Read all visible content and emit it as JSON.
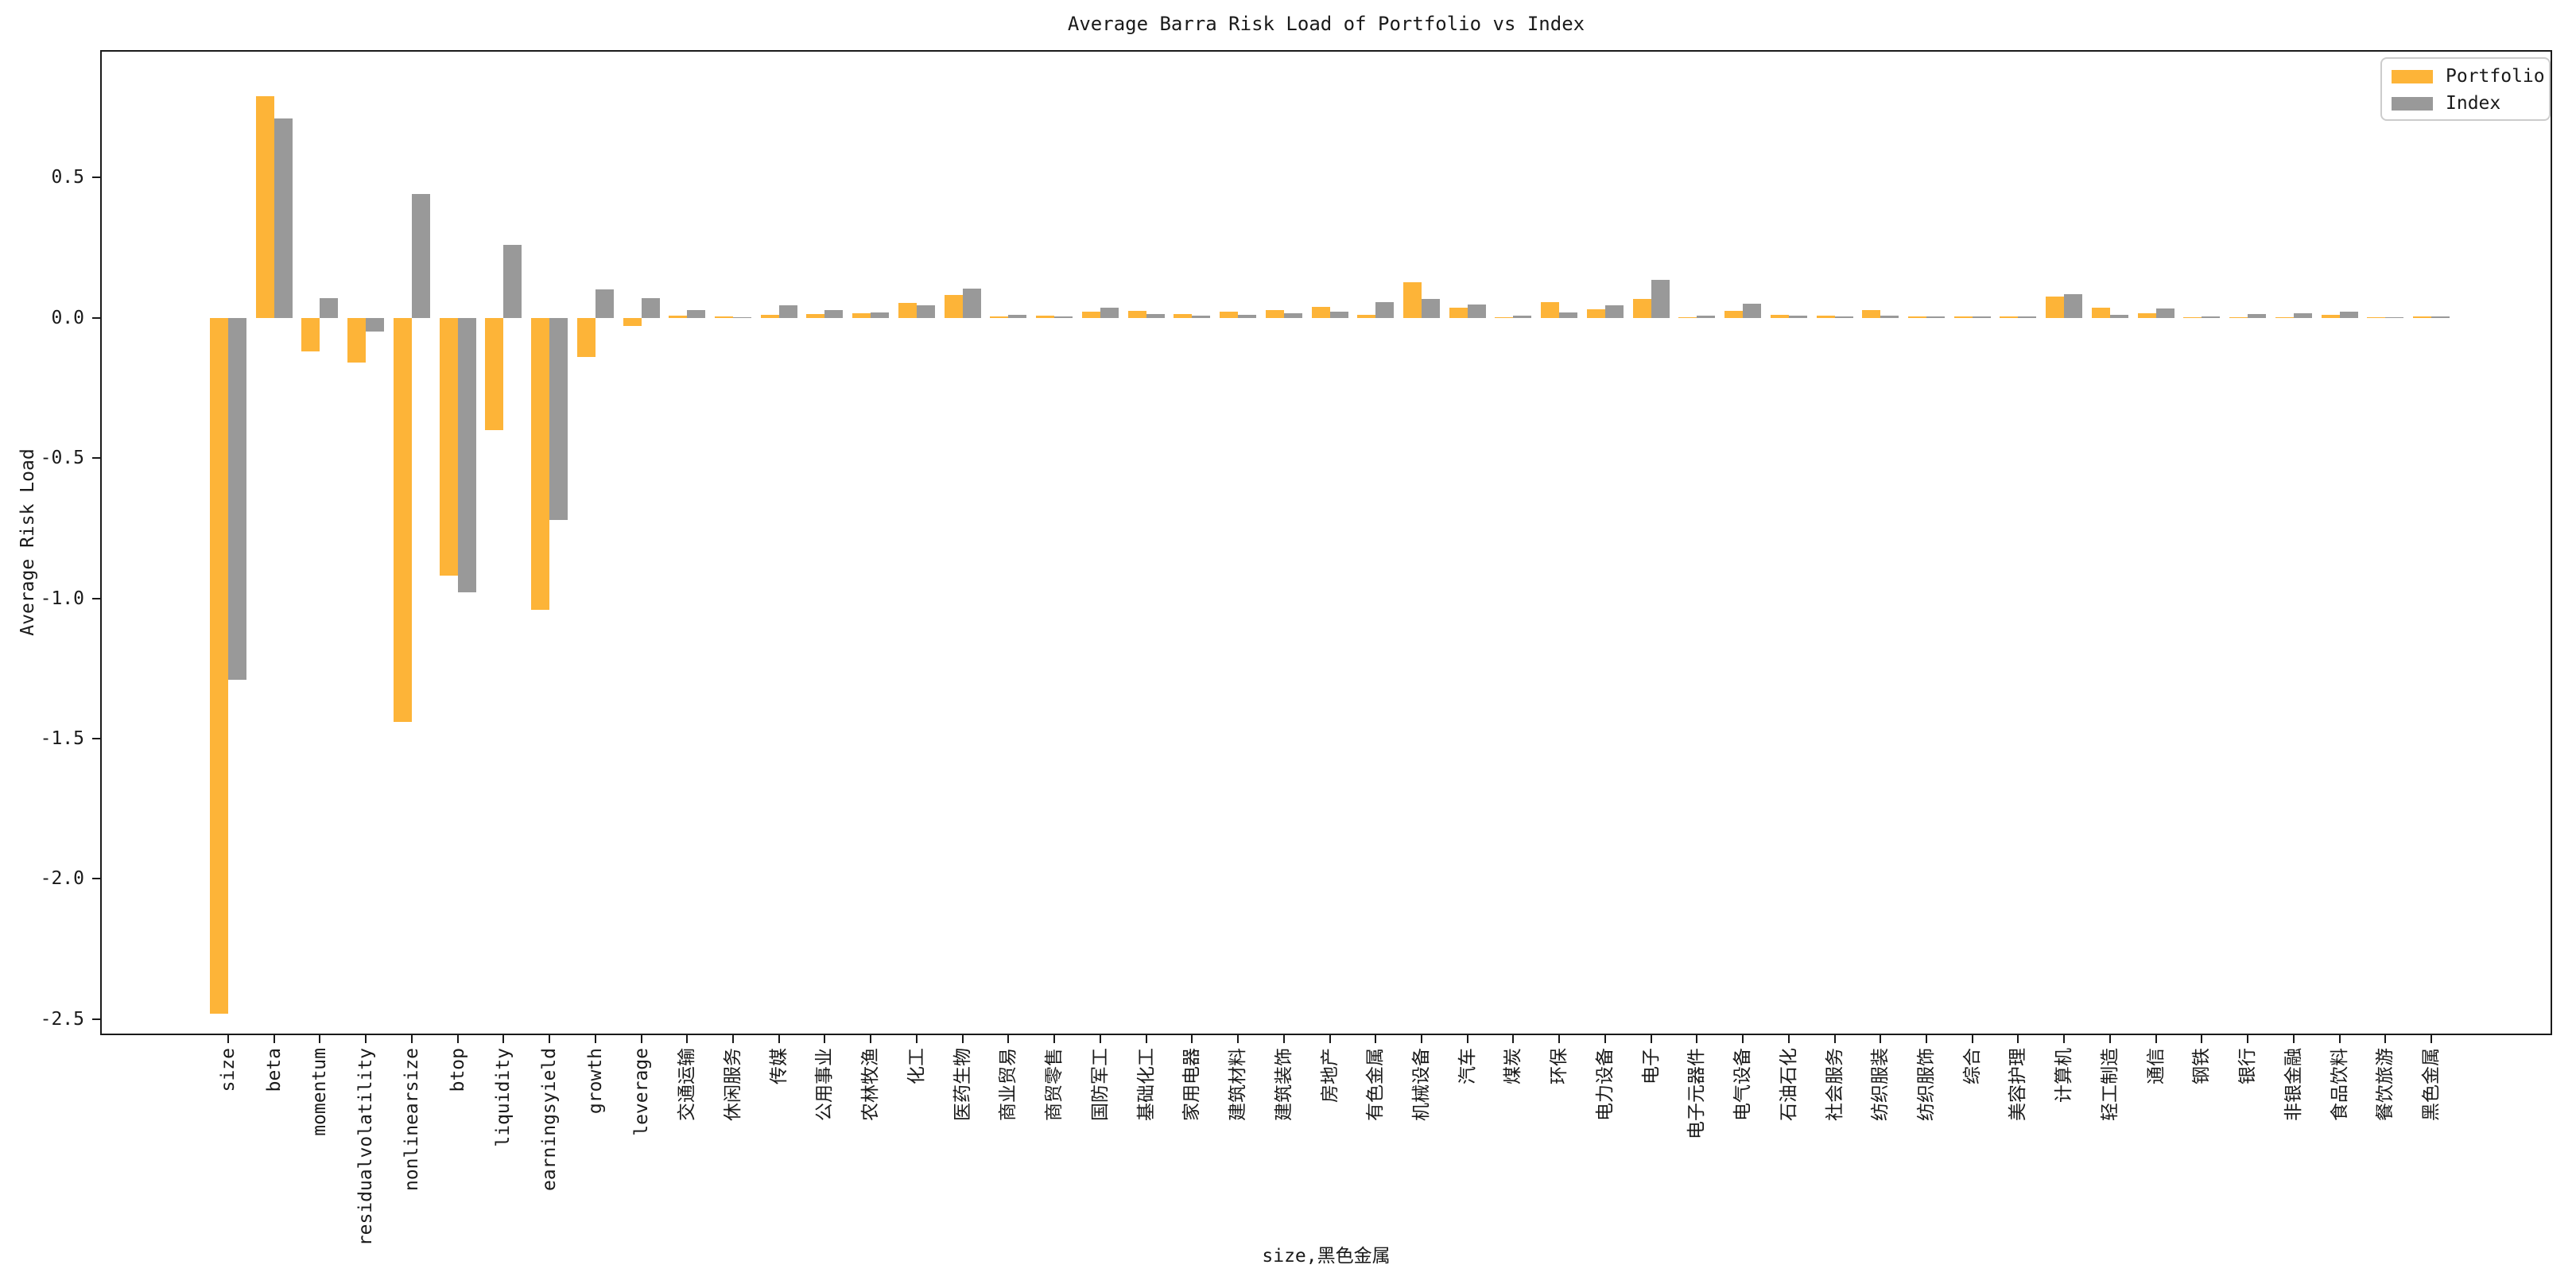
{
  "chart_data": {
    "type": "bar",
    "title": "Average Barra Risk Load of Portfolio vs Index",
    "xlabel": "size,黑色金属",
    "ylabel": "Average Risk Load",
    "legend_position": "upper right",
    "grid": false,
    "background_color": "#ffffff",
    "ylim": [
      -2.557,
      0.954
    ],
    "yticks": [
      "0.5",
      "0.0",
      "-0.5",
      "-1.0",
      "-1.5",
      "-2.0",
      "-2.5"
    ],
    "ytick_values": [
      0.5,
      0.0,
      -0.5,
      -1.0,
      -1.5,
      -2.0,
      -2.5
    ],
    "categories": [
      "size",
      "beta",
      "momentum",
      "residualvolatility",
      "nonlinearsize",
      "btop",
      "liquidity",
      "earningsyield",
      "growth",
      "leverage",
      "交通运输",
      "休闲服务",
      "传媒",
      "公用事业",
      "农林牧渔",
      "化工",
      "医药生物",
      "商业贸易",
      "商贸零售",
      "国防军工",
      "基础化工",
      "家用电器",
      "建筑材料",
      "建筑装饰",
      "房地产",
      "有色金属",
      "机械设备",
      "汽车",
      "煤炭",
      "环保",
      "电力设备",
      "电子",
      "电子元器件",
      "电气设备",
      "石油石化",
      "社会服务",
      "纺织服装",
      "纺织服饰",
      "综合",
      "美容护理",
      "计算机",
      "轻工制造",
      "通信",
      "钢铁",
      "银行",
      "非银金融",
      "食品饮料",
      "餐饮旅游",
      "黑色金属"
    ],
    "series": [
      {
        "name": "Portfolio",
        "color": "#FDB438",
        "values": [
          -2.48,
          0.79,
          -0.12,
          -0.16,
          -1.44,
          -0.92,
          -0.4,
          -1.04,
          -0.14,
          -0.03,
          0.008,
          0.004,
          0.009,
          0.012,
          0.015,
          0.053,
          0.081,
          0.006,
          0.007,
          0.023,
          0.025,
          0.014,
          0.022,
          0.027,
          0.04,
          0.01,
          0.127,
          0.037,
          0.003,
          0.056,
          0.03,
          0.068,
          0.003,
          0.025,
          0.009,
          0.008,
          0.026,
          0.005,
          0.006,
          0.006,
          0.076,
          0.037,
          0.015,
          0.003,
          0.003,
          0.003,
          0.009,
          0.001,
          0.005
        ]
      },
      {
        "name": "Index",
        "color": "#999999",
        "values": [
          -1.29,
          0.71,
          0.07,
          -0.05,
          0.44,
          -0.98,
          0.26,
          -0.72,
          0.1,
          0.07,
          0.026,
          0.003,
          0.044,
          0.027,
          0.018,
          0.044,
          0.103,
          0.011,
          0.005,
          0.037,
          0.014,
          0.007,
          0.009,
          0.017,
          0.021,
          0.056,
          0.068,
          0.046,
          0.008,
          0.019,
          0.044,
          0.136,
          0.008,
          0.051,
          0.007,
          0.005,
          0.007,
          0.004,
          0.004,
          0.005,
          0.085,
          0.009,
          0.034,
          0.006,
          0.014,
          0.017,
          0.023,
          0.003,
          0.004
        ]
      }
    ]
  }
}
